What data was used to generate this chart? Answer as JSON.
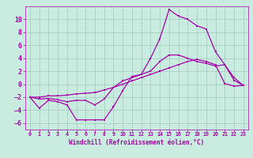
{
  "xlabel": "Windchill (Refroidissement éolien,°C)",
  "bg_color": "#c8ece0",
  "grid_color": "#a0ccbc",
  "line_color": "#aa00aa",
  "spine_color": "#aa00aa",
  "xlim": [
    -0.5,
    23.5
  ],
  "ylim": [
    -7,
    12
  ],
  "yticks": [
    -6,
    -4,
    -2,
    0,
    2,
    4,
    6,
    8,
    10
  ],
  "xticks": [
    0,
    1,
    2,
    3,
    4,
    5,
    6,
    7,
    8,
    9,
    10,
    11,
    12,
    13,
    14,
    15,
    16,
    17,
    18,
    19,
    20,
    21,
    22,
    23
  ],
  "line1_x": [
    0,
    1,
    2,
    3,
    4,
    5,
    6,
    7,
    8,
    9,
    10,
    11,
    12,
    13,
    14,
    15,
    16,
    17,
    18,
    19,
    20,
    21,
    22,
    23
  ],
  "line1_y": [
    -2,
    -3.7,
    -2.5,
    -2.7,
    -3.2,
    -5.5,
    -5.5,
    -5.5,
    -5.5,
    -3.5,
    -1.0,
    1.2,
    1.5,
    4.0,
    7.0,
    11.5,
    10.5,
    10.0,
    9.0,
    8.5,
    5.0,
    3.0,
    1.0,
    -0.2
  ],
  "line2_x": [
    0,
    1,
    2,
    3,
    4,
    5,
    6,
    7,
    8,
    9,
    10,
    11,
    12,
    13,
    14,
    15,
    16,
    17,
    18,
    19,
    20,
    21,
    22,
    23
  ],
  "line2_y": [
    -2,
    -2.3,
    -2.2,
    -2.4,
    -2.7,
    -2.5,
    -2.5,
    -3.2,
    -2.3,
    -0.5,
    0.5,
    1.0,
    1.5,
    2.0,
    3.5,
    4.5,
    4.5,
    4.0,
    3.5,
    3.2,
    2.8,
    3.0,
    0.6,
    -0.2
  ],
  "line3_x": [
    0,
    1,
    2,
    3,
    4,
    5,
    6,
    7,
    8,
    9,
    10,
    11,
    12,
    13,
    14,
    15,
    16,
    17,
    18,
    19,
    20,
    21,
    22,
    23
  ],
  "line3_y": [
    -2,
    -2.0,
    -1.8,
    -1.8,
    -1.7,
    -1.5,
    -1.4,
    -1.3,
    -0.9,
    -0.5,
    0.0,
    0.5,
    1.0,
    1.5,
    2.0,
    2.5,
    3.0,
    3.5,
    3.8,
    3.5,
    3.0,
    0.1,
    -0.3,
    -0.2
  ],
  "xlabel_fontsize": 5.5,
  "tick_fontsize_x": 4.8,
  "tick_fontsize_y": 6.0,
  "lw": 0.9,
  "ms": 2.0
}
